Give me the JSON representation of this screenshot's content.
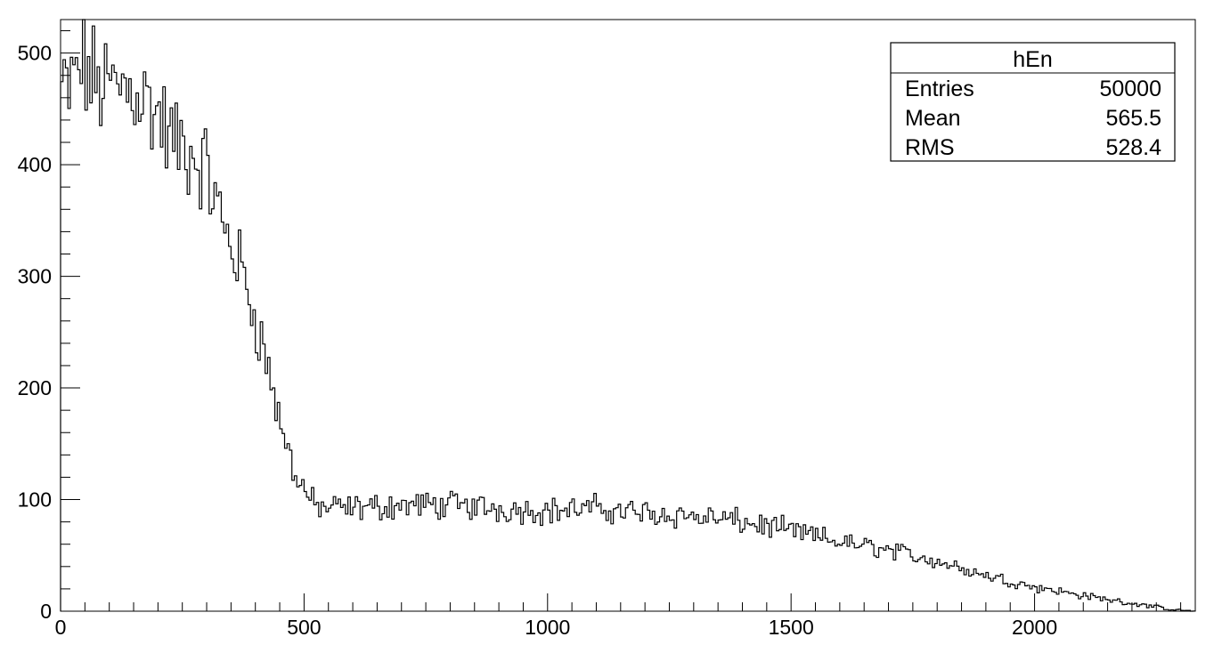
{
  "chart_data": {
    "type": "histogram",
    "title": "",
    "xlabel": "",
    "ylabel": "",
    "xlim": [
      0,
      2330
    ],
    "ylim": [
      0,
      530
    ],
    "bin_width": 5,
    "x_ticks": [
      0,
      500,
      1000,
      1500,
      2000
    ],
    "x_tick_labels": [
      "0",
      "500",
      "1000",
      "1500",
      "2000"
    ],
    "y_ticks": [
      0,
      100,
      200,
      300,
      400,
      500
    ],
    "y_tick_labels": [
      "0",
      "100",
      "200",
      "300",
      "400",
      "500"
    ],
    "grid": false,
    "legend": "none",
    "line_color": "#000000",
    "profile_points": [
      [
        0,
        468
      ],
      [
        20,
        465
      ],
      [
        40,
        490
      ],
      [
        80,
        470
      ],
      [
        120,
        468
      ],
      [
        150,
        470
      ],
      [
        180,
        455
      ],
      [
        200,
        445
      ],
      [
        230,
        420
      ],
      [
        270,
        410
      ],
      [
        300,
        395
      ],
      [
        330,
        350
      ],
      [
        360,
        320
      ],
      [
        390,
        280
      ],
      [
        420,
        230
      ],
      [
        450,
        170
      ],
      [
        480,
        125
      ],
      [
        500,
        110
      ],
      [
        520,
        95
      ],
      [
        550,
        92
      ],
      [
        600,
        92
      ],
      [
        700,
        95
      ],
      [
        800,
        95
      ],
      [
        900,
        92
      ],
      [
        1000,
        90
      ],
      [
        1100,
        92
      ],
      [
        1200,
        88
      ],
      [
        1300,
        85
      ],
      [
        1400,
        80
      ],
      [
        1500,
        72
      ],
      [
        1600,
        62
      ],
      [
        1700,
        55
      ],
      [
        1800,
        45
      ],
      [
        1900,
        32
      ],
      [
        2000,
        22
      ],
      [
        2100,
        14
      ],
      [
        2200,
        7
      ],
      [
        2250,
        4
      ],
      [
        2270,
        2
      ],
      [
        2300,
        1
      ],
      [
        2330,
        0
      ]
    ],
    "noise_amplitude": 0.09,
    "stats_box": {
      "name": "hEn",
      "rows": [
        {
          "label": "Entries",
          "value": "50000"
        },
        {
          "label": "Mean",
          "value": "565.5"
        },
        {
          "label": "RMS",
          "value": "528.4"
        }
      ]
    }
  }
}
